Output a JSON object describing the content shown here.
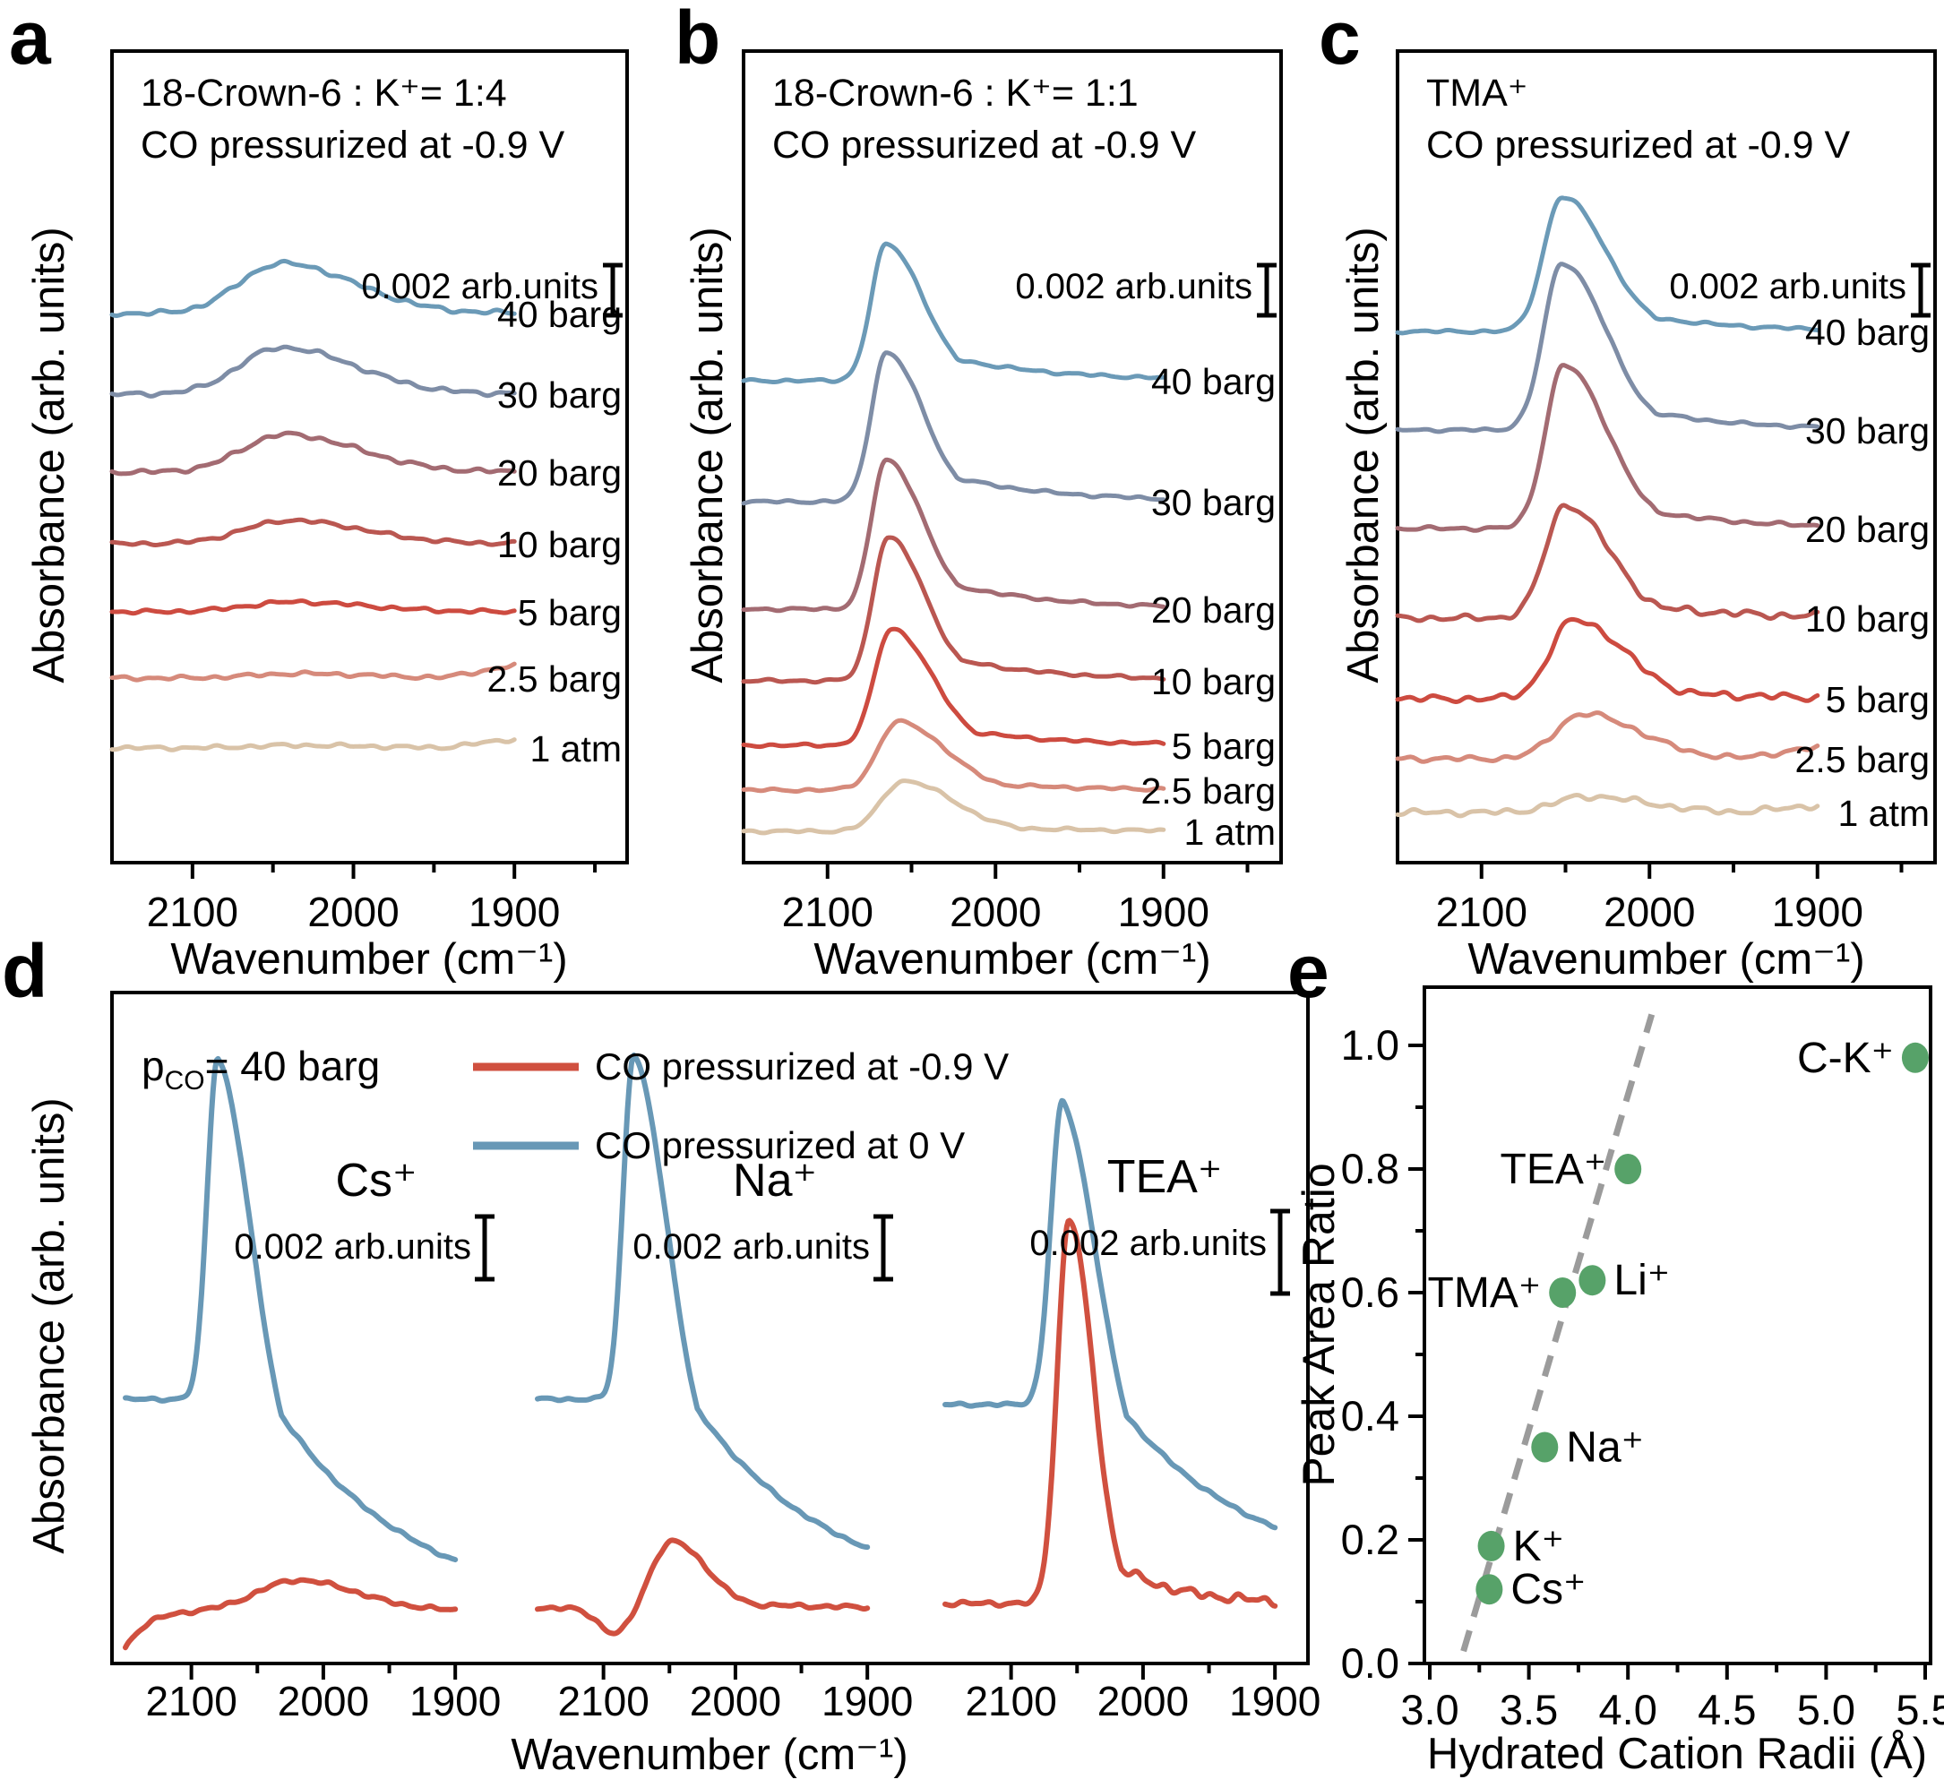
{
  "letters": {
    "a": "a",
    "b": "b",
    "c": "c",
    "d": "d",
    "e": "e"
  },
  "chart_data": [
    {
      "panel": "a",
      "type": "line",
      "title_line1": "18-Crown-6 : K⁺= 1:4",
      "title_line2": "CO pressurized at -0.9 V",
      "scale_bar_label": "0.002 arb.units",
      "scale_bar_value": 0.002,
      "xlabel": "Wavenumber (cm⁻¹)",
      "ylabel": "Absorbance (arb. units)",
      "x_range_cm": [
        2150,
        1830
      ],
      "x_major_ticks": [
        "2100",
        "2000",
        "1900"
      ],
      "series": [
        {
          "name": "40 barg",
          "color": "#6b9ab7",
          "center": 2045,
          "baseline": 350,
          "amp": 56,
          "wl": 26,
          "wr": 46,
          "tail": 0.1,
          "tailw": 90,
          "noise": 3,
          "seed": 1
        },
        {
          "name": "30 barg",
          "color": "#7e8da6",
          "center": 2045,
          "baseline": 440,
          "amp": 52,
          "wl": 26,
          "wr": 46,
          "tail": 0.1,
          "tailw": 90,
          "noise": 3,
          "seed": 2
        },
        {
          "name": "20 barg",
          "color": "#a36b72",
          "center": 2043,
          "baseline": 527,
          "amp": 42,
          "wl": 26,
          "wr": 46,
          "tail": 0.1,
          "tailw": 90,
          "noise": 3,
          "seed": 3
        },
        {
          "name": "10 barg",
          "color": "#ba5751",
          "center": 2040,
          "baseline": 607,
          "amp": 26,
          "wl": 28,
          "wr": 46,
          "tail": 0.1,
          "tailw": 90,
          "noise": 2.5,
          "seed": 4
        },
        {
          "name": "5 barg",
          "color": "#cd4b40",
          "center": 2038,
          "baseline": 683,
          "amp": 11,
          "wl": 28,
          "wr": 46,
          "tail": 0.1,
          "tailw": 90,
          "noise": 2.5,
          "seed": 5
        },
        {
          "name": "2.5 barg",
          "color": "#d68a7b",
          "center": 2035,
          "baseline": 757,
          "amp": 5,
          "wl": 28,
          "wr": 46,
          "tail": 0,
          "tailw": 90,
          "noise": 2.5,
          "seed": 6,
          "end_rise": 14
        },
        {
          "name": "1 atm",
          "color": "#d9c3a8",
          "center": 2035,
          "baseline": 835,
          "amp": 3,
          "wl": 28,
          "wr": 46,
          "tail": 0,
          "tailw": 90,
          "noise": 2.5,
          "seed": 7,
          "end_rise": 10
        }
      ]
    },
    {
      "panel": "b",
      "type": "line",
      "title_line1": "18-Crown-6 : K⁺= 1:1",
      "title_line2": "CO pressurized at -0.9 V",
      "scale_bar_label": "0.002 arb.units",
      "scale_bar_value": 0.002,
      "xlabel": "Wavenumber (cm⁻¹)",
      "ylabel": "Absorbance (arb. units)",
      "x_range_cm": [
        2150,
        1830
      ],
      "x_major_ticks": [
        "2100",
        "2000",
        "1900"
      ],
      "series": [
        {
          "name": "40 barg",
          "color": "#6b9ab7",
          "center": 2065,
          "baseline": 425,
          "amp": 152,
          "wl": 9,
          "wr": 22,
          "tail": 0.32,
          "tailw": 60,
          "noise": 2,
          "seed": 21
        },
        {
          "name": "30 barg",
          "color": "#7e8da6",
          "center": 2065,
          "baseline": 560,
          "amp": 166,
          "wl": 9,
          "wr": 22,
          "tail": 0.32,
          "tailw": 60,
          "noise": 2,
          "seed": 22
        },
        {
          "name": "20 barg",
          "color": "#a36b72",
          "center": 2065,
          "baseline": 680,
          "amp": 166,
          "wl": 9,
          "wr": 22,
          "tail": 0.32,
          "tailw": 60,
          "noise": 2,
          "seed": 23
        },
        {
          "name": "10 barg",
          "color": "#ba5751",
          "center": 2064,
          "baseline": 760,
          "amp": 160,
          "wl": 9,
          "wr": 22,
          "tail": 0.3,
          "tailw": 58,
          "noise": 2,
          "seed": 24
        },
        {
          "name": "5 barg",
          "color": "#cd4b40",
          "center": 2062,
          "baseline": 832,
          "amp": 130,
          "wl": 10,
          "wr": 24,
          "tail": 0.28,
          "tailw": 55,
          "noise": 2,
          "seed": 25
        },
        {
          "name": "2.5 barg",
          "color": "#d68a7b",
          "center": 2058,
          "baseline": 882,
          "amp": 76,
          "wl": 12,
          "wr": 28,
          "tail": 0.25,
          "tailw": 55,
          "noise": 2,
          "seed": 26
        },
        {
          "name": "1 atm",
          "color": "#d9c3a8",
          "center": 2055,
          "baseline": 928,
          "amp": 56,
          "wl": 13,
          "wr": 30,
          "tail": 0.22,
          "tailw": 55,
          "noise": 2,
          "seed": 27
        }
      ]
    },
    {
      "panel": "c",
      "type": "line",
      "title_line1": "TMA⁺",
      "title_line2": "CO pressurized at -0.9 V",
      "scale_bar_label": "0.002 arb.units",
      "scale_bar_value": 0.002,
      "xlabel": "Wavenumber (cm⁻¹)",
      "ylabel": "Absorbance (arb. units)",
      "x_range_cm": [
        2150,
        1830
      ],
      "x_major_ticks": [
        "2100",
        "2000",
        "1900"
      ],
      "series": [
        {
          "name": "40 barg",
          "color": "#6b9ab7",
          "center": 2052,
          "baseline": 370,
          "amp": 150,
          "wl": 11,
          "wr": 26,
          "tail": 0.28,
          "tailw": 55,
          "noise": 2,
          "seed": 31
        },
        {
          "name": "30 barg",
          "color": "#7e8da6",
          "center": 2052,
          "baseline": 480,
          "amp": 186,
          "wl": 11,
          "wr": 26,
          "tail": 0.28,
          "tailw": 55,
          "noise": 2,
          "seed": 32
        },
        {
          "name": "20 barg",
          "color": "#a36b72",
          "center": 2051,
          "baseline": 590,
          "amp": 182,
          "wl": 11,
          "wr": 26,
          "tail": 0.28,
          "tailw": 55,
          "noise": 2.5,
          "seed": 33
        },
        {
          "name": "10 barg",
          "color": "#ba5751",
          "center": 2050,
          "baseline": 690,
          "amp": 126,
          "wl": 12,
          "wr": 26,
          "tail": 0.26,
          "tailw": 55,
          "noise": 4,
          "noise2": 5,
          "seed": 34
        },
        {
          "name": "5 barg",
          "color": "#cd4b40",
          "center": 2045,
          "baseline": 780,
          "amp": 88,
          "wl": 14,
          "wr": 30,
          "tail": 0.24,
          "tailw": 55,
          "noise": 4.5,
          "noise2": 5,
          "seed": 35
        },
        {
          "name": "2.5 barg",
          "color": "#d68a7b",
          "center": 2040,
          "baseline": 847,
          "amp": 50,
          "wl": 16,
          "wr": 34,
          "tail": 0.15,
          "tailw": 55,
          "noise": 3.5,
          "seed": 36,
          "end_rise": 12
        },
        {
          "name": "1 atm",
          "color": "#d9c3a8",
          "center": 2038,
          "baseline": 907,
          "amp": 18,
          "wl": 18,
          "wr": 36,
          "tail": 0.1,
          "tailw": 55,
          "noise": 4,
          "seed": 37,
          "end_rise": 8
        }
      ]
    },
    {
      "panel": "d",
      "type": "line-overlay",
      "header": {
        "p": "p",
        "p_sub": "CO",
        "p_rest": "= 40 barg"
      },
      "legend": [
        {
          "label": "CO pressurized at -0.9 V",
          "color": "#d0503f"
        },
        {
          "label": "CO pressurized at 0 V",
          "color": "#6898b6"
        }
      ],
      "xlabel": "Wavenumber (cm⁻¹)",
      "ylabel": "Absorbance (arb. units)",
      "x_range_cm": [
        2150,
        1875
      ],
      "x_major_ticks": [
        "2100",
        "2000",
        "1900"
      ],
      "groups": [
        {
          "ion": "Cs⁺",
          "scale_bar_label": "0.002 arb.units",
          "scale_bar_value": 0.002,
          "series": [
            {
              "name": "CO pressurized at 0 V",
              "color": "#6898b6",
              "center": 2080,
              "baseline": 1562,
              "amp": 382,
              "wl": 8,
              "wr": 26,
              "tail": 0.3,
              "tailw": 95,
              "droop": 245,
              "noise": 2,
              "seed": 41
            },
            {
              "name": "CO pressurized at -0.9 V",
              "color": "#d0503f",
              "center": 2020,
              "baseline": 1798,
              "amp": 34,
              "wl": 30,
              "wr": 45,
              "tail": 0,
              "tailw": 60,
              "lead_amp": 42,
              "lead_w": 16,
              "noise": 2.5,
              "seed": 42
            }
          ]
        },
        {
          "ion": "Na⁺",
          "scale_bar_label": "0.002 arb.units",
          "scale_bar_value": 0.002,
          "series": [
            {
              "name": "CO pressurized at 0 V",
              "color": "#6898b6",
              "center": 2077,
              "baseline": 1562,
              "amp": 386,
              "wl": 8,
              "wr": 26,
              "tail": 0.3,
              "tailw": 95,
              "droop": 230,
              "noise": 2,
              "seed": 43
            },
            {
              "name": "CO pressurized at -0.9 V",
              "color": "#d0503f",
              "center": 2048,
              "baseline": 1795,
              "amp": 74,
              "wl": 16,
              "wr": 26,
              "tail": 0.15,
              "tailw": 60,
              "dip_center": 2090,
              "dip_amp": 30,
              "dip_w": 13,
              "noise": 2.5,
              "seed": 44
            }
          ]
        },
        {
          "ion": "TEA⁺",
          "scale_bar_label": "0.002 arb.units",
          "scale_bar_value": 0.002,
          "series": [
            {
              "name": "CO pressurized at 0 V",
              "color": "#6898b6",
              "center": 2061,
              "baseline": 1568,
              "amp": 338,
              "wl": 9,
              "wr": 26,
              "tail": 0.3,
              "tailw": 90,
              "droop": 200,
              "noise": 2,
              "seed": 45
            },
            {
              "name": "CO pressurized at -0.9 V",
              "color": "#d0503f",
              "center": 2056,
              "baseline": 1790,
              "amp": 428,
              "wl": 9,
              "wr": 18,
              "tail": 0.22,
              "tailw": 45,
              "noise": 3,
              "noise2": 6,
              "seed": 46
            }
          ]
        }
      ]
    },
    {
      "panel": "e",
      "type": "scatter",
      "xlabel": "Hydrated Cation Radii (Å)",
      "ylabel": "Peak Area Ratio",
      "x_range": [
        3.0,
        5.5
      ],
      "y_range": [
        0.0,
        1.09
      ],
      "x_ticks": [
        "3.0",
        "3.5",
        "4.0",
        "4.5",
        "5.0",
        "5.5"
      ],
      "y_ticks": [
        "0.0",
        "0.2",
        "0.4",
        "0.6",
        "0.8",
        "1.0"
      ],
      "point_color": "#57a269",
      "trend_color": "#9b9b9b",
      "trend": {
        "x1": 3.17,
        "y1": 0.02,
        "x2": 4.12,
        "y2": 1.05
      },
      "points": [
        {
          "label": "Cs⁺",
          "x": 3.3,
          "y": 0.12,
          "side": "right"
        },
        {
          "label": "K⁺",
          "x": 3.31,
          "y": 0.19,
          "side": "right"
        },
        {
          "label": "Na⁺",
          "x": 3.58,
          "y": 0.35,
          "side": "right"
        },
        {
          "label": "TMA⁺",
          "x": 3.67,
          "y": 0.6,
          "side": "left"
        },
        {
          "label": "Li⁺",
          "x": 3.82,
          "y": 0.62,
          "side": "right"
        },
        {
          "label": "TEA⁺",
          "x": 4.0,
          "y": 0.8,
          "side": "left"
        },
        {
          "label": "C-K⁺",
          "x": 5.45,
          "y": 0.98,
          "side": "left"
        }
      ]
    }
  ]
}
